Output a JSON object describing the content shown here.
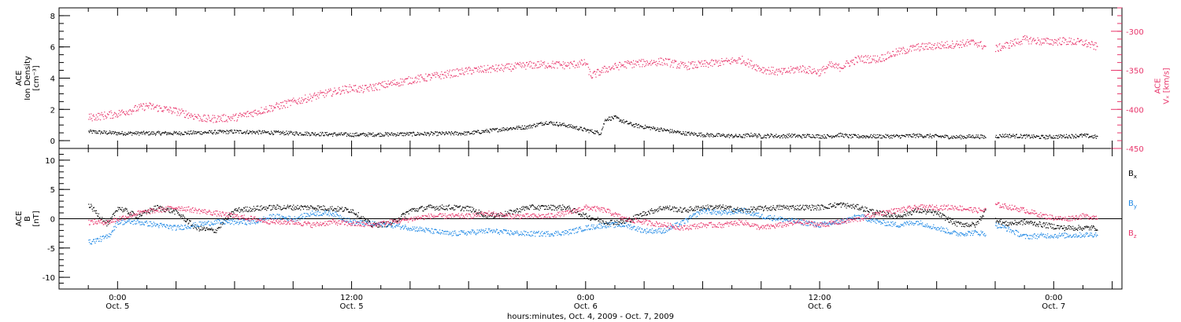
{
  "chart_data": [
    {
      "type": "scatter",
      "panel": "top",
      "ylabel_lines": [
        "ACE",
        "Ion Density",
        "[cm⁻³]"
      ],
      "ylabel_right_lines": [
        "ACE",
        "Vₓ [km/s]"
      ],
      "ylim": [
        -0.5,
        8.5
      ],
      "yticks": [
        0,
        2,
        4,
        6,
        8
      ],
      "ylim_right": [
        -450,
        -270
      ],
      "yticks_right": [
        -450,
        -400,
        -350,
        -300
      ],
      "series": [
        {
          "axis": "left",
          "color": "#000000",
          "t": [
            -3,
            0,
            6,
            12,
            18,
            24,
            30,
            36,
            40,
            42,
            44,
            46,
            48,
            49.5,
            50,
            51,
            52,
            53,
            54,
            56,
            58,
            60,
            62,
            64,
            65,
            66,
            67,
            68,
            69,
            70,
            71,
            72,
            73,
            74,
            75,
            76,
            78,
            80,
            82,
            84,
            86,
            88,
            89,
            89.5,
            90,
            91,
            93,
            95,
            97,
            99,
            100.5
          ],
          "values": [
            0.6,
            0.5,
            0.5,
            0.6,
            0.5,
            0.4,
            0.45,
            0.5,
            0.8,
            0.9,
            1.2,
            1.0,
            0.7,
            0.5,
            1.4,
            1.5,
            1.2,
            1.0,
            0.9,
            0.7,
            0.5,
            0.4,
            0.35,
            0.3,
            0.4,
            0.3,
            0.35,
            0.3,
            0.35,
            0.3,
            0.35,
            0.3,
            0.3,
            0.4,
            0.3,
            0.3,
            0.3,
            0.3,
            0.35,
            0.3,
            0.25,
            0.3,
            0.25,
            null,
            0.3,
            0.35,
            0.3,
            0.25,
            0.3,
            0.35,
            0.25
          ]
        },
        {
          "axis": "right",
          "color": "#e8356b",
          "t": [
            -3,
            0,
            3,
            6,
            9,
            12,
            15,
            18,
            21,
            24,
            25,
            27,
            30,
            33,
            36,
            40,
            42,
            44,
            46,
            48,
            48.5,
            50,
            52,
            54,
            56,
            58,
            60,
            62,
            64,
            66,
            68,
            70,
            72,
            73,
            74,
            75,
            76,
            78,
            80,
            82,
            84,
            86,
            88,
            89,
            89.5,
            90,
            91,
            93,
            95,
            97,
            99,
            100.5
          ],
          "values": [
            -410,
            -405,
            -395,
            -402,
            -412,
            -410,
            -400,
            -390,
            -380,
            -372,
            -374,
            -369,
            -362,
            -356,
            -350,
            -346,
            -343,
            -342,
            -343,
            -340,
            -357,
            -348,
            -342,
            -340,
            -338,
            -344,
            -342,
            -339,
            -336,
            -348,
            -352,
            -347,
            -352,
            -343,
            -346,
            -340,
            -335,
            -335,
            -326,
            -320,
            -318,
            -316,
            -314,
            -320,
            null,
            -322,
            -318,
            -310,
            -313,
            -312,
            -314,
            -320
          ]
        }
      ]
    },
    {
      "type": "scatter",
      "panel": "bottom",
      "ylabel_lines": [
        "ACE",
        "B",
        "[nT]"
      ],
      "ylim": [
        -12,
        12
      ],
      "yticks": [
        -10,
        -5,
        0,
        5,
        10
      ],
      "zero_line": true,
      "series": [
        {
          "name": "Bx",
          "color": "#000000",
          "t": [
            -3,
            -1,
            0,
            2,
            4,
            6,
            8,
            10,
            12,
            14,
            16,
            18,
            20,
            22,
            24,
            26,
            28,
            30,
            32,
            34,
            36,
            38,
            40,
            42,
            44,
            46,
            48,
            50,
            52,
            54,
            56,
            58,
            60,
            62,
            64,
            66,
            68,
            70,
            72,
            74,
            76,
            78,
            80,
            82,
            84,
            86,
            88,
            89,
            89.5,
            90,
            91,
            93,
            95,
            97,
            99,
            100.5
          ],
          "values": [
            2.5,
            -1.0,
            2.0,
            0.5,
            2.0,
            1.2,
            -1.5,
            -2.0,
            1.5,
            1.8,
            2.0,
            2.0,
            2.0,
            1.8,
            1.5,
            -1.0,
            -0.8,
            1.5,
            2.0,
            2.0,
            1.8,
            0.5,
            1.0,
            2.0,
            2.0,
            2.0,
            0.5,
            -0.5,
            -0.5,
            1.0,
            2.0,
            1.5,
            2.0,
            2.0,
            1.5,
            1.8,
            2.0,
            2.0,
            2.0,
            2.5,
            2.0,
            1.0,
            0.5,
            1.5,
            1.0,
            -0.8,
            -1.0,
            1.5,
            null,
            0.0,
            -0.8,
            -0.5,
            -1.0,
            -1.5,
            -1.5,
            -1.5
          ]
        },
        {
          "name": "By",
          "color": "#1e88e5",
          "t": [
            -3,
            -1,
            0,
            2,
            4,
            6,
            8,
            10,
            12,
            14,
            16,
            18,
            20,
            22,
            24,
            26,
            28,
            30,
            32,
            34,
            36,
            38,
            40,
            42,
            44,
            46,
            48,
            50,
            52,
            54,
            56,
            58,
            60,
            62,
            64,
            66,
            68,
            70,
            72,
            74,
            76,
            78,
            80,
            82,
            84,
            86,
            88,
            89,
            89.5,
            90,
            91,
            93,
            95,
            97,
            99,
            100.5
          ],
          "values": [
            -4.0,
            -3.0,
            -0.5,
            -0.5,
            -1.0,
            -1.5,
            -1.0,
            -0.5,
            -0.5,
            -0.5,
            0.5,
            0.0,
            1.0,
            1.0,
            -0.5,
            -0.8,
            -1.0,
            -1.5,
            -2.0,
            -2.5,
            -2.3,
            -2.0,
            -2.3,
            -2.5,
            -2.5,
            -2.3,
            -1.5,
            -1.0,
            -1.0,
            -2.0,
            -2.0,
            -0.5,
            1.5,
            1.0,
            1.5,
            0.5,
            0.0,
            -0.5,
            -1.0,
            -0.5,
            0.5,
            -0.5,
            -1.0,
            -0.5,
            -1.5,
            -2.5,
            -2.3,
            -2.5,
            null,
            -1.0,
            -1.5,
            -3.0,
            -2.8,
            -2.8,
            -2.7,
            -2.6
          ]
        },
        {
          "name": "Bz",
          "color": "#e8356b",
          "t": [
            -3,
            -1,
            0,
            2,
            4,
            6,
            8,
            10,
            12,
            14,
            16,
            18,
            20,
            22,
            24,
            26,
            28,
            30,
            32,
            34,
            36,
            38,
            40,
            42,
            44,
            46,
            48,
            50,
            52,
            54,
            56,
            58,
            60,
            62,
            64,
            66,
            68,
            70,
            72,
            74,
            76,
            78,
            80,
            82,
            84,
            86,
            88,
            89,
            89.5,
            90,
            91,
            93,
            95,
            97,
            99,
            100.5
          ],
          "values": [
            -0.5,
            -0.5,
            0.0,
            1.0,
            1.5,
            2.0,
            1.5,
            1.0,
            0.5,
            0.0,
            -0.5,
            -0.5,
            -1.0,
            -0.5,
            -0.8,
            -1.0,
            -0.5,
            0.0,
            0.5,
            0.5,
            0.5,
            1.0,
            0.5,
            0.5,
            0.5,
            1.0,
            2.0,
            1.5,
            0.0,
            -0.5,
            -1.0,
            -1.5,
            -1.0,
            -1.0,
            -0.5,
            -1.5,
            -1.0,
            -0.5,
            -1.0,
            -0.5,
            0.0,
            1.0,
            1.5,
            2.0,
            2.0,
            2.0,
            1.5,
            1.5,
            null,
            2.5,
            2.2,
            1.5,
            0.5,
            0.0,
            0.5,
            0.3
          ]
        }
      ]
    }
  ],
  "legend": [
    {
      "base": "B",
      "sub": "x",
      "color": "#000000"
    },
    {
      "base": "B",
      "sub": "y",
      "color": "#1e88e5"
    },
    {
      "base": "B",
      "sub": "z",
      "color": "#e8356b"
    }
  ],
  "x_axis": {
    "xlim_hours": [
      -6,
      103
    ],
    "major_ticks": [
      {
        "t": 0,
        "time": "0:00",
        "date": "Oct. 5"
      },
      {
        "t": 6,
        "time": "",
        "date": "Oct. 5"
      },
      {
        "t": 24,
        "time": "12:00",
        "date": "Oct. 5"
      },
      {
        "t": 48,
        "time": "0:00",
        "date": "Oct. 6"
      },
      {
        "t": 72,
        "time": "12:00",
        "date": "Oct. 6"
      },
      {
        "t": 96,
        "time": "0:00",
        "date": "Oct. 7"
      }
    ],
    "title": "hours:minutes, Oct.  4, 2009 - Oct.  7, 2009"
  }
}
